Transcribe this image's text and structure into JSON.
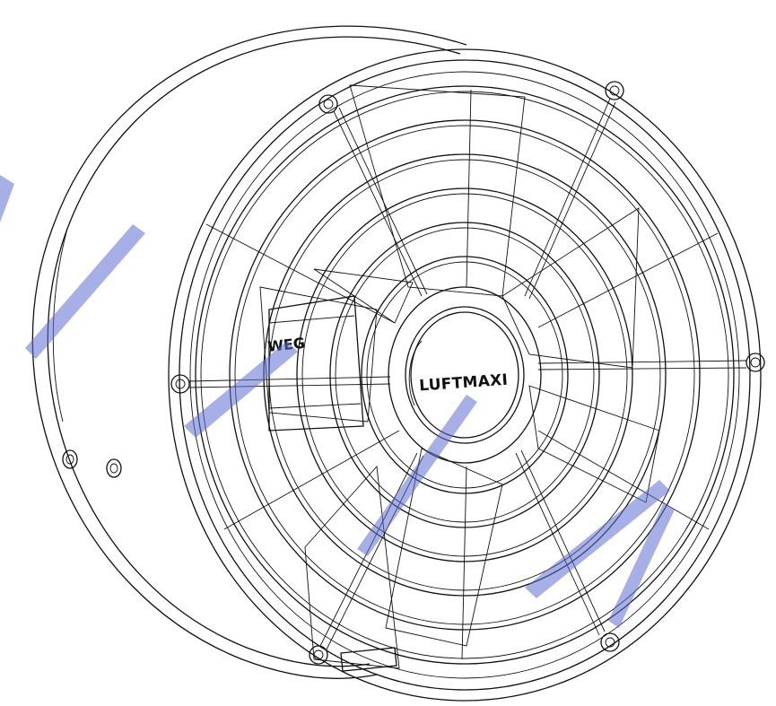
{
  "drawing": {
    "hub_brand_text": "LUFTMAXI",
    "motor_brand_text": "WEG",
    "watermark_color": "#5f6fd1",
    "line_color": "#111111"
  }
}
